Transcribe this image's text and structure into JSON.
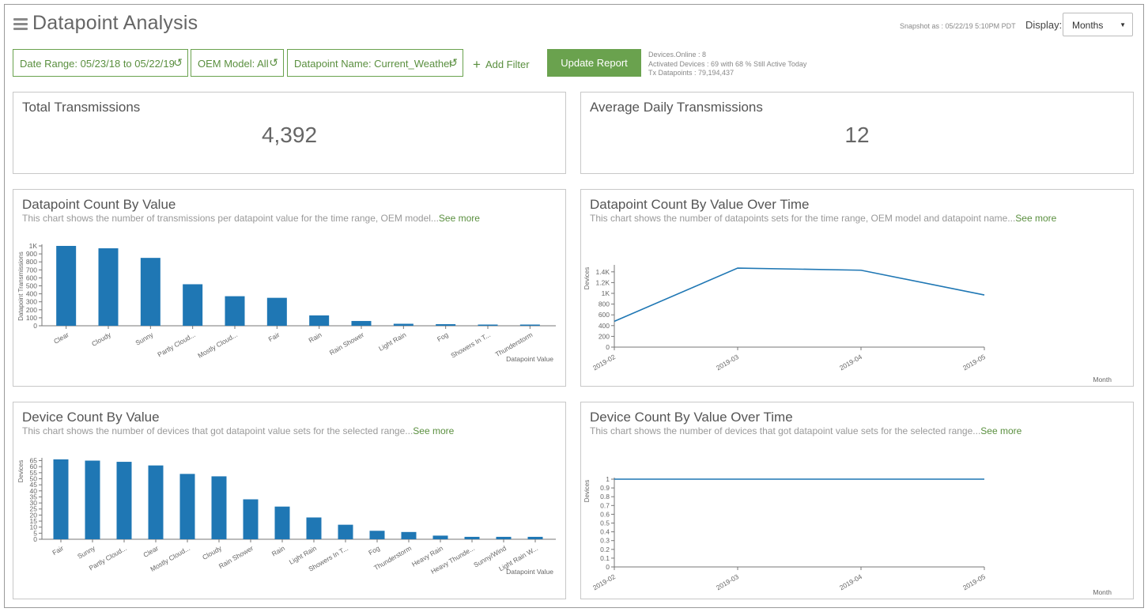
{
  "header": {
    "title": "Datapoint Analysis",
    "snapshot": "Snapshot as : 05/22/19 5:10PM PDT",
    "display_label": "Display:",
    "display_value": "Months"
  },
  "filters": {
    "date_range": "Date Range: 05/23/18 to 05/22/19",
    "oem_model": "OEM Model: All",
    "datapoint_name": "Datapoint Name: Current_Weather",
    "add_filter": "Add Filter",
    "update_report": "Update Report"
  },
  "stats": {
    "devices_online": "Devices.Online : 8",
    "activated_devices": "Activated Devices : 69 with 68 % Still Active Today",
    "tx_datapoints": "Tx Datapoints : 79,194,437"
  },
  "kpis": {
    "total_transmissions": {
      "label": "Total Transmissions",
      "value": "4,392"
    },
    "average_daily": {
      "label": "Average Daily Transmissions",
      "value": "12"
    }
  },
  "panels": {
    "dp_count_by_value": {
      "title": "Datapoint Count By Value",
      "subtitle": "This chart shows the number of transmissions per datapoint value for the time range, OEM model...",
      "see_more": "See more"
    },
    "dp_count_over_time": {
      "title": "Datapoint Count By Value Over Time",
      "subtitle": "This chart shows the number of datapoints sets for the time range, OEM model and datapoint name...",
      "see_more": "See more"
    },
    "device_count_by_value": {
      "title": "Device Count By Value",
      "subtitle": "This chart shows the number of devices that got datapoint value sets for the selected range...",
      "see_more": "See more"
    },
    "device_count_over_time": {
      "title": "Device Count By Value Over Time",
      "subtitle": "This chart shows the number of devices that got datapoint value sets for the selected range...",
      "see_more": "See more"
    }
  },
  "colors": {
    "accent_green": "#6aa24e",
    "bar_blue": "#1f77b4"
  },
  "chart_data": [
    {
      "id": "dp_count_by_value",
      "type": "bar",
      "xlabel": "Datapoint Value",
      "ylabel": "Datapoint Transmissions",
      "categories": [
        "Clear",
        "Cloudy",
        "Sunny",
        "Partly Cloud...",
        "Mostly Cloud...",
        "Fair",
        "Rain",
        "Rain Shower",
        "Light Rain",
        "Fog",
        "Showers In T...",
        "Thunderstorm"
      ],
      "values": [
        1000,
        970,
        850,
        520,
        370,
        350,
        130,
        60,
        25,
        20,
        15,
        15
      ],
      "yticks": [
        0,
        100,
        200,
        300,
        400,
        500,
        600,
        700,
        800,
        900,
        1000
      ],
      "ytick_labels": [
        "0",
        "100",
        "200",
        "300",
        "400",
        "500",
        "600",
        "700",
        "800",
        "900",
        "1K"
      ],
      "ylim": [
        0,
        1000
      ]
    },
    {
      "id": "dp_count_over_time",
      "type": "line",
      "xlabel": "Month",
      "ylabel": "Devices",
      "x": [
        "2019-02",
        "2019-03",
        "2019-04",
        "2019-05"
      ],
      "values": [
        480,
        1470,
        1430,
        970
      ],
      "yticks": [
        0,
        200,
        400,
        600,
        800,
        1000,
        1200,
        1400
      ],
      "ytick_labels": [
        "0",
        "200",
        "400",
        "600",
        "800",
        "1K",
        "1.2K",
        "1.4K"
      ],
      "ylim": [
        0,
        1500
      ]
    },
    {
      "id": "device_count_by_value",
      "type": "bar",
      "xlabel": "Datapoint Value",
      "ylabel": "Devices",
      "categories": [
        "Fair",
        "Sunny",
        "Partly Cloud...",
        "Clear",
        "Mostly Cloud...",
        "Cloudy",
        "Rain Shower",
        "Rain",
        "Light Rain",
        "Showers In T...",
        "Fog",
        "Thunderstorm",
        "Heavy Rain",
        "Heavy Thunde...",
        "Sunny/Wind",
        "Light Rain W..."
      ],
      "values": [
        66,
        65,
        64,
        61,
        54,
        52,
        33,
        27,
        18,
        12,
        7,
        6,
        3,
        2,
        2,
        2
      ],
      "yticks": [
        0,
        5,
        10,
        15,
        20,
        25,
        30,
        35,
        40,
        45,
        50,
        55,
        60,
        65
      ],
      "ytick_labels": [
        "0",
        "5",
        "10",
        "15",
        "20",
        "25",
        "30",
        "35",
        "40",
        "45",
        "50",
        "55",
        "60",
        "65"
      ],
      "ylim": [
        0,
        66
      ]
    },
    {
      "id": "device_count_over_time",
      "type": "line",
      "xlabel": "Month",
      "ylabel": "Devices",
      "x": [
        "2019-02",
        "2019-03",
        "2019-04",
        "2019-05"
      ],
      "values": [
        1,
        1,
        1,
        1
      ],
      "yticks": [
        0,
        0.1,
        0.2,
        0.3,
        0.4,
        0.5,
        0.6,
        0.7,
        0.8,
        0.9,
        1
      ],
      "ytick_labels": [
        "0",
        "0.1",
        "0.2",
        "0.3",
        "0.4",
        "0.5",
        "0.6",
        "0.7",
        "0.8",
        "0.9",
        "1"
      ],
      "ylim": [
        0,
        1
      ]
    }
  ]
}
